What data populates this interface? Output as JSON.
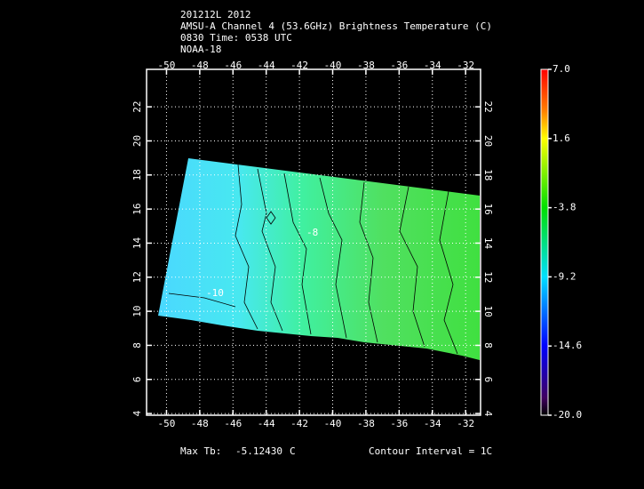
{
  "header": {
    "lines": [
      "201212L 2012",
      "AMSU-A Channel 4 (53.6GHz) Brightness Temperature (C)",
      "0830 Time: 0538 UTC",
      "NOAA-18"
    ]
  },
  "map": {
    "xlim": [
      -51.2,
      -31.1
    ],
    "ylim": [
      3.9,
      24.2
    ],
    "xticks": [
      -50,
      -48,
      -46,
      -44,
      -42,
      -40,
      -38,
      -36,
      -34,
      -32
    ],
    "yticks": [
      4,
      6,
      8,
      10,
      12,
      14,
      16,
      18,
      20,
      22
    ],
    "grid": true,
    "contour_labels": [
      "-10",
      "-8"
    ]
  },
  "colorbar": {
    "lim": [
      -20,
      7
    ],
    "ticks": [
      {
        "value": 7,
        "label": "7.0"
      },
      1.6,
      -3.8,
      -9.2,
      -14.6,
      {
        "value": -20,
        "label": "-20.0"
      }
    ]
  },
  "footer": {
    "max_label": "Max Tb:",
    "max_value": "-5.12430",
    "max_unit": "C",
    "contour": "Contour Interval = 1C"
  }
}
